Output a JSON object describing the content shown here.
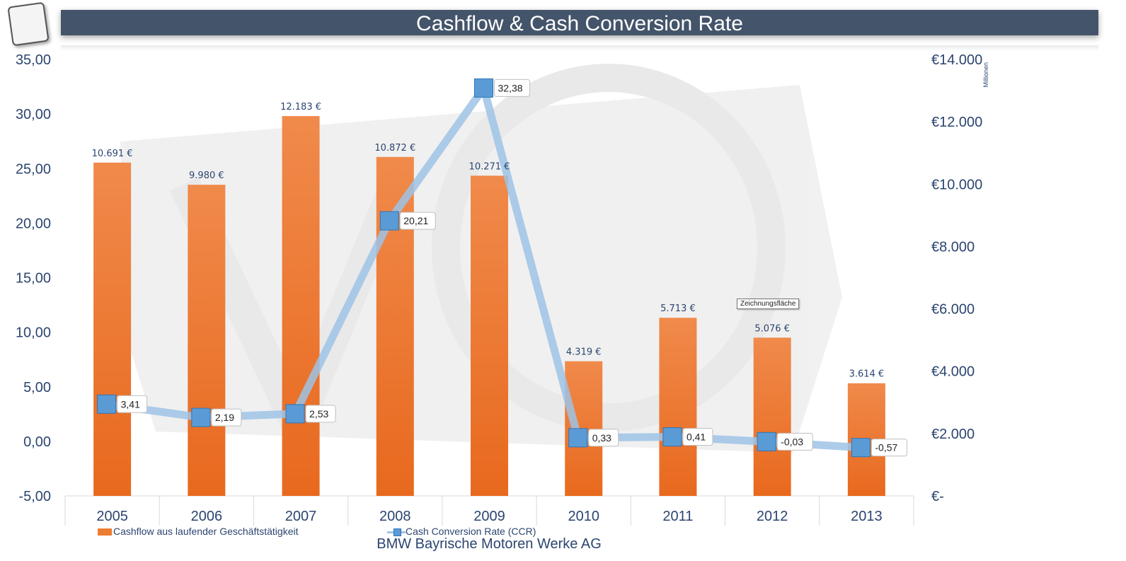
{
  "chart_data": {
    "type": "bar",
    "title": "Cashflow & Cash Conversion Rate",
    "subtitle": "BMW Bayrische Motoren Werke AG",
    "categories": [
      "2005",
      "2006",
      "2007",
      "2008",
      "2009",
      "2010",
      "2011",
      "2012",
      "2013"
    ],
    "series": [
      {
        "name": "Cashflow aus laufender Geschäftstätigkeit",
        "type": "bar",
        "axis": "secondary",
        "color": "#ed7d31",
        "values": [
          10691,
          9980,
          12183,
          10872,
          10271,
          4319,
          5713,
          5076,
          3614
        ],
        "labels": [
          "10.691 €",
          "9.980 €",
          "12.183 €",
          "10.872 €",
          "10.271 €",
          "4.319 €",
          "5.713 €",
          "5.076 €",
          "3.614 €"
        ]
      },
      {
        "name": "Cash Conversion Rate (CCR)",
        "type": "line",
        "axis": "primary",
        "color": "#9dc3e6",
        "marker_color": "#5b9bd5",
        "values": [
          3.41,
          2.19,
          2.53,
          20.21,
          32.38,
          0.33,
          0.41,
          -0.03,
          -0.57
        ],
        "labels": [
          "3,41",
          "2,19",
          "2,53",
          "20,21",
          "32,38",
          "0,33",
          "0,41",
          "-0,03",
          "-0,57"
        ]
      }
    ],
    "y_primary": {
      "ylim": [
        -5,
        35
      ],
      "ticks": [
        "35,00",
        "30,00",
        "25,00",
        "20,00",
        "15,00",
        "10,00",
        "5,00",
        "0,00",
        "-5,00"
      ]
    },
    "y_secondary": {
      "ylim": [
        0,
        14000
      ],
      "ticks": [
        "€14.000",
        "€12.000",
        "€10.000",
        "€8.000",
        "€6.000",
        "€4.000",
        "€2.000",
        "€-"
      ],
      "unit_label": "Millionen"
    },
    "legend_position": "bottom",
    "grid": false,
    "tooltip": "Zeichnungsfläche"
  }
}
